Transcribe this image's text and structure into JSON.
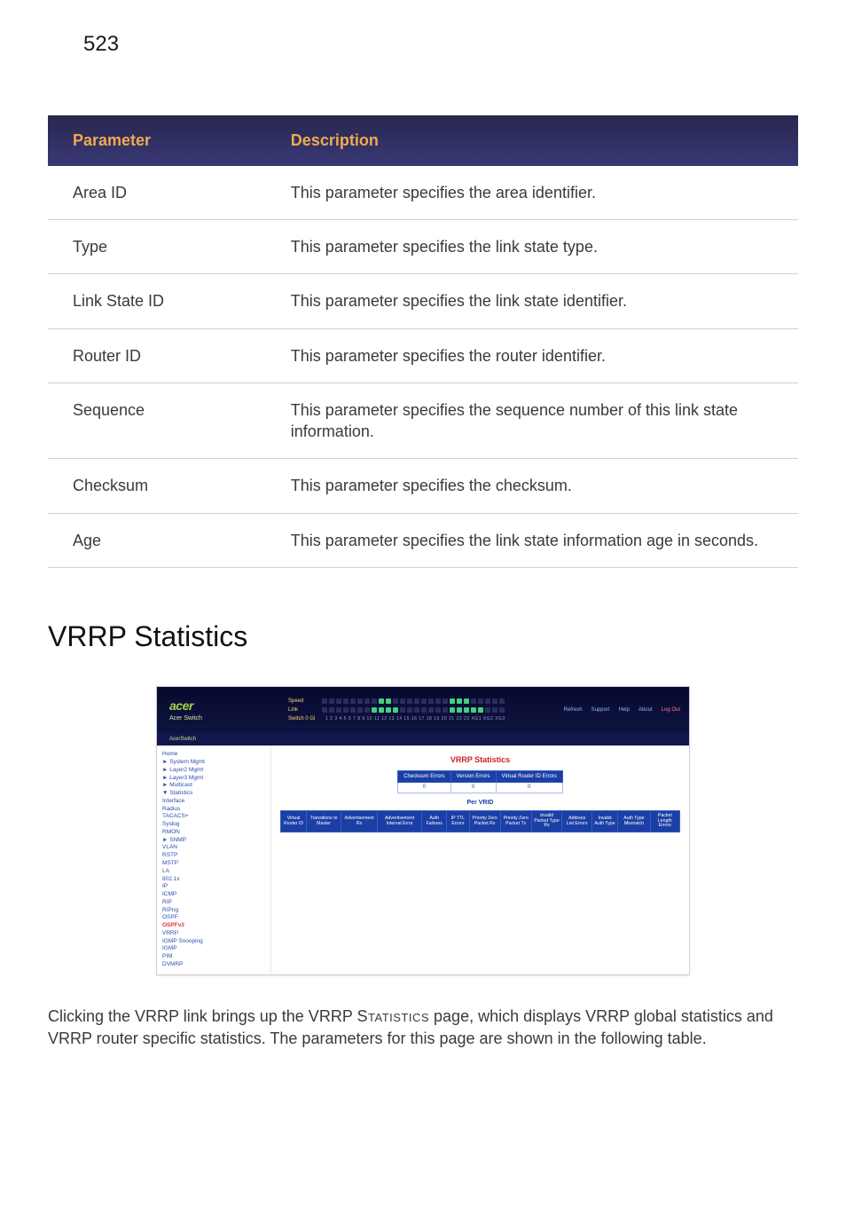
{
  "page_number": "523",
  "param_table": {
    "headers": [
      "Parameter",
      "Description"
    ],
    "rows": [
      {
        "param": "Area ID",
        "desc": "This parameter specifies the area identifier."
      },
      {
        "param": "Type",
        "desc": "This parameter specifies the link state type."
      },
      {
        "param": "Link State ID",
        "desc": "This parameter specifies the link state identifier."
      },
      {
        "param": "Router ID",
        "desc": "This parameter specifies the router identifier."
      },
      {
        "param": "Sequence",
        "desc": "This parameter specifies the sequence number of this link state information."
      },
      {
        "param": "Checksum",
        "desc": "This parameter specifies the checksum."
      },
      {
        "param": "Age",
        "desc": "This parameter specifies the link state information age in seconds."
      }
    ]
  },
  "section_title": "VRRP Statistics",
  "screenshot": {
    "brand": {
      "logo": "acer",
      "product": "Acer Switch",
      "label": "AcerSwitch"
    },
    "toplinks": [
      "Refresh",
      "Support",
      "Help",
      "About",
      "Log Out"
    ],
    "ports": {
      "speed_label": "Speed",
      "link_label": "Link",
      "switch_row_label": "Switch 0 Gi",
      "numbers": "1 2 3 4 5 6 7 8 9 10 11 12 13 14 15 16 17 18 19 20 21 22 23 XG1 XG2 XG3"
    },
    "nav_items": [
      "Home",
      "► System Mgmt",
      "► Layer2 Mgmt",
      "► Layer3 Mgmt",
      "► Multicast",
      "▼ Statistics",
      "  Interface",
      "  Radius",
      "  TACACS+",
      "  Syslog",
      "  RMON",
      "  ► SNMP",
      "  VLAN",
      "  RSTP",
      "  MSTP",
      "  LA",
      "  802.1x",
      "  IP",
      "  ICMP",
      "  RIP",
      "  RIPng",
      "  OSPF",
      "  OSPFv3",
      "  VRRP",
      "  IGMP Snooping",
      "  IGMP",
      "  PIM",
      "  DVMRP"
    ],
    "nav_selected_index": 22,
    "content": {
      "title": "VRRP Statistics",
      "global_counters": {
        "headers": [
          "Checksum Errors",
          "Version Errors",
          "Virtual Router ID Errors"
        ],
        "values": [
          "0",
          "0",
          "0"
        ]
      },
      "per_vrid_label": "Per VRID",
      "columns": [
        "Virtual Router ID",
        "Transitions to Master",
        "Advertisement Rx",
        "Advertisement Interval Error",
        "Auth Failures",
        "IP TTL Errors",
        "Priority Zero Packet Rx",
        "Priority Zero Packet Tx",
        "Invalid Packet Type Rx",
        "Address List Errors",
        "Invalid Auth Type",
        "Auth Type Mismatch",
        "Packet Length Errors"
      ]
    }
  },
  "body_paragraph": {
    "pre": "Clicking the VRRP link brings up the VRRP ",
    "sc": "Statistics",
    "post": " page, which displays VRRP global statistics and VRRP router specific statistics. The parameters for this page are shown in the following table."
  }
}
